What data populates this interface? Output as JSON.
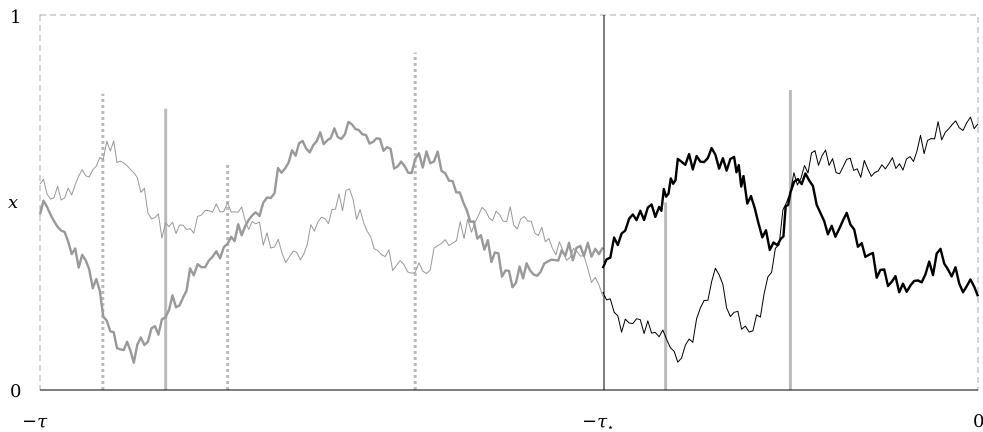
{
  "labels": {
    "y_top": "1",
    "y_bottom": "0",
    "y_mid": "x",
    "x_left": "−τ",
    "x_mid": "−τ",
    "x_mid_sub": "⋆",
    "x_right": "0"
  },
  "colors": {
    "gray_path": "#999999",
    "black_path": "#000000",
    "marker": "#bbbbbb",
    "frame": "#aaaaaa"
  },
  "paths": [
    {
      "name": "gray-thin-path",
      "segment": "left",
      "color": "#999999",
      "width": 1,
      "y0": 0.54,
      "seed": 11,
      "waypoints": [
        [
          0,
          0.54
        ],
        [
          0.03,
          0.52
        ],
        [
          0.06,
          0.6
        ],
        [
          0.075,
          0.66
        ],
        [
          0.1,
          0.57
        ],
        [
          0.13,
          0.43
        ],
        [
          0.16,
          0.42
        ],
        [
          0.18,
          0.47
        ],
        [
          0.2,
          0.5
        ],
        [
          0.23,
          0.43
        ],
        [
          0.27,
          0.35
        ],
        [
          0.3,
          0.45
        ],
        [
          0.33,
          0.52
        ],
        [
          0.36,
          0.36
        ],
        [
          0.4,
          0.32
        ],
        [
          0.42,
          0.35
        ],
        [
          0.46,
          0.45
        ],
        [
          0.49,
          0.48
        ],
        [
          0.52,
          0.44
        ],
        [
          0.55,
          0.38
        ],
        [
          0.58,
          0.34
        ],
        [
          0.6,
          0.25
        ]
      ]
    },
    {
      "name": "gray-thick-path",
      "segment": "left",
      "color": "#999999",
      "width": 2.4,
      "y0": 0.49,
      "seed": 23,
      "waypoints": [
        [
          0,
          0.49
        ],
        [
          0.03,
          0.4
        ],
        [
          0.06,
          0.28
        ],
        [
          0.075,
          0.13
        ],
        [
          0.1,
          0.1
        ],
        [
          0.13,
          0.18
        ],
        [
          0.16,
          0.3
        ],
        [
          0.18,
          0.33
        ],
        [
          0.2,
          0.4
        ],
        [
          0.23,
          0.45
        ],
        [
          0.25,
          0.55
        ],
        [
          0.28,
          0.65
        ],
        [
          0.31,
          0.68
        ],
        [
          0.34,
          0.7
        ],
        [
          0.37,
          0.62
        ],
        [
          0.4,
          0.6
        ],
        [
          0.42,
          0.63
        ],
        [
          0.44,
          0.55
        ],
        [
          0.47,
          0.4
        ],
        [
          0.5,
          0.3
        ],
        [
          0.53,
          0.32
        ],
        [
          0.56,
          0.37
        ],
        [
          0.6,
          0.38
        ]
      ]
    },
    {
      "name": "black-thin-path",
      "segment": "right",
      "color": "#000000",
      "width": 1,
      "y0": 0.25,
      "seed": 37,
      "waypoints": [
        [
          0.6,
          0.25
        ],
        [
          0.62,
          0.16
        ],
        [
          0.64,
          0.17
        ],
        [
          0.66,
          0.15
        ],
        [
          0.68,
          0.06
        ],
        [
          0.7,
          0.18
        ],
        [
          0.72,
          0.3
        ],
        [
          0.74,
          0.2
        ],
        [
          0.76,
          0.16
        ],
        [
          0.78,
          0.32
        ],
        [
          0.8,
          0.55
        ],
        [
          0.83,
          0.62
        ],
        [
          0.86,
          0.6
        ],
        [
          0.89,
          0.58
        ],
        [
          0.92,
          0.6
        ],
        [
          0.95,
          0.68
        ],
        [
          0.98,
          0.72
        ],
        [
          1,
          0.71
        ]
      ]
    },
    {
      "name": "black-thick-path",
      "segment": "right",
      "color": "#000000",
      "width": 2.4,
      "y0": 0.34,
      "seed": 51,
      "waypoints": [
        [
          0.6,
          0.34
        ],
        [
          0.62,
          0.43
        ],
        [
          0.64,
          0.45
        ],
        [
          0.66,
          0.48
        ],
        [
          0.67,
          0.55
        ],
        [
          0.68,
          0.6
        ],
        [
          0.7,
          0.6
        ],
        [
          0.72,
          0.62
        ],
        [
          0.74,
          0.6
        ],
        [
          0.75,
          0.55
        ],
        [
          0.77,
          0.4
        ],
        [
          0.79,
          0.38
        ],
        [
          0.8,
          0.55
        ],
        [
          0.82,
          0.55
        ],
        [
          0.84,
          0.42
        ],
        [
          0.86,
          0.45
        ],
        [
          0.88,
          0.36
        ],
        [
          0.9,
          0.3
        ],
        [
          0.92,
          0.28
        ],
        [
          0.94,
          0.31
        ],
        [
          0.96,
          0.35
        ],
        [
          0.98,
          0.3
        ],
        [
          1,
          0.25
        ]
      ]
    }
  ],
  "markers": [
    {
      "name": "dotted-marker-1",
      "style": "dotted",
      "x": 0.067,
      "height": 0.79
    },
    {
      "name": "solid-marker-1",
      "style": "solid",
      "x": 0.134,
      "height": 0.75
    },
    {
      "name": "dotted-marker-2",
      "style": "dotted",
      "x": 0.2,
      "height": 0.6
    },
    {
      "name": "dotted-marker-3",
      "style": "dotted",
      "x": 0.4,
      "height": 0.9
    },
    {
      "name": "solid-marker-2",
      "style": "solid",
      "x": 0.667,
      "height": 0.5
    },
    {
      "name": "solid-marker-3",
      "style": "solid",
      "x": 0.8,
      "height": 0.8
    }
  ],
  "divider_x": 0.6
}
